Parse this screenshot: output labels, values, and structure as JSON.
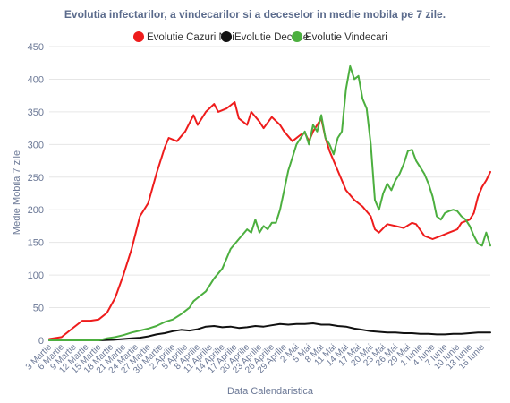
{
  "chart_data": {
    "type": "line",
    "title": "Evolutia infectarilor, a vindecarilor si a deceselor in medie mobila pe 7 zile.",
    "xlabel": "Data Calendaristica",
    "ylabel": "Medie Mobila 7 zile",
    "ylim": [
      0,
      450
    ],
    "yticks": [
      0,
      50,
      100,
      150,
      200,
      250,
      300,
      350,
      400,
      450
    ],
    "xlim": [
      0,
      107
    ],
    "xticks": [
      {
        "x": 0,
        "label": "3 Martie"
      },
      {
        "x": 3,
        "label": "6 Martie"
      },
      {
        "x": 6,
        "label": "9 Martie"
      },
      {
        "x": 9,
        "label": "12 Martie"
      },
      {
        "x": 12,
        "label": "15 Martie"
      },
      {
        "x": 15,
        "label": "18 Martie"
      },
      {
        "x": 18,
        "label": "21 Martie"
      },
      {
        "x": 21,
        "label": "24 Martie"
      },
      {
        "x": 24,
        "label": "27 Martie"
      },
      {
        "x": 27,
        "label": "30 Martie"
      },
      {
        "x": 30,
        "label": "2 Aprilie"
      },
      {
        "x": 33,
        "label": "5 Aprilie"
      },
      {
        "x": 36,
        "label": "8 Aprilie"
      },
      {
        "x": 39,
        "label": "11 Aprilie"
      },
      {
        "x": 42,
        "label": "14 Aprilie"
      },
      {
        "x": 45,
        "label": "17 Aprilie"
      },
      {
        "x": 48,
        "label": "20 Aprilie"
      },
      {
        "x": 51,
        "label": "23 Aprilie"
      },
      {
        "x": 54,
        "label": "26 Aprilie"
      },
      {
        "x": 57,
        "label": "29 Aprilie"
      },
      {
        "x": 60,
        "label": "2 Mai"
      },
      {
        "x": 63,
        "label": "5 Mai"
      },
      {
        "x": 66,
        "label": "8 Mai"
      },
      {
        "x": 69,
        "label": "11 Mai"
      },
      {
        "x": 72,
        "label": "14 Mai"
      },
      {
        "x": 75,
        "label": "17 Mai"
      },
      {
        "x": 78,
        "label": "20 Mai"
      },
      {
        "x": 81,
        "label": "23 Mai"
      },
      {
        "x": 84,
        "label": "26 Mai"
      },
      {
        "x": 87,
        "label": "29 Mai"
      },
      {
        "x": 90,
        "label": "1 Iunie"
      },
      {
        "x": 93,
        "label": "4 Iunie"
      },
      {
        "x": 96,
        "label": "7 Iunie"
      },
      {
        "x": 99,
        "label": "10 Iunie"
      },
      {
        "x": 102,
        "label": "13 Iunie"
      },
      {
        "x": 105,
        "label": "16 Iunie"
      }
    ],
    "legend_position": "top-center",
    "grid": true,
    "series": [
      {
        "name": "Evolutie Cazuri Noi",
        "color": "#ee1c1c",
        "points": [
          [
            0,
            2
          ],
          [
            3,
            5
          ],
          [
            6,
            20
          ],
          [
            8,
            30
          ],
          [
            10,
            30
          ],
          [
            12,
            32
          ],
          [
            14,
            42
          ],
          [
            16,
            65
          ],
          [
            18,
            100
          ],
          [
            20,
            140
          ],
          [
            22,
            190
          ],
          [
            24,
            210
          ],
          [
            26,
            255
          ],
          [
            28,
            295
          ],
          [
            29,
            310
          ],
          [
            31,
            305
          ],
          [
            33,
            320
          ],
          [
            35,
            345
          ],
          [
            36,
            330
          ],
          [
            38,
            350
          ],
          [
            40,
            362
          ],
          [
            41,
            350
          ],
          [
            43,
            355
          ],
          [
            45,
            365
          ],
          [
            46,
            340
          ],
          [
            48,
            330
          ],
          [
            49,
            350
          ],
          [
            51,
            335
          ],
          [
            52,
            325
          ],
          [
            54,
            342
          ],
          [
            56,
            330
          ],
          [
            57,
            320
          ],
          [
            59,
            305
          ],
          [
            61,
            315
          ],
          [
            62,
            318
          ],
          [
            63,
            305
          ],
          [
            64,
            320
          ],
          [
            66,
            340
          ],
          [
            67,
            310
          ],
          [
            68,
            290
          ],
          [
            70,
            260
          ],
          [
            72,
            230
          ],
          [
            74,
            215
          ],
          [
            76,
            205
          ],
          [
            78,
            190
          ],
          [
            79,
            170
          ],
          [
            80,
            165
          ],
          [
            82,
            178
          ],
          [
            84,
            175
          ],
          [
            86,
            172
          ],
          [
            88,
            180
          ],
          [
            89,
            178
          ],
          [
            91,
            160
          ],
          [
            93,
            155
          ],
          [
            95,
            160
          ],
          [
            97,
            165
          ],
          [
            99,
            170
          ],
          [
            100,
            180
          ],
          [
            102,
            185
          ],
          [
            103,
            195
          ],
          [
            104,
            220
          ],
          [
            105,
            235
          ],
          [
            106,
            245
          ],
          [
            107,
            258
          ]
        ]
      },
      {
        "name": "Evolutie Decese",
        "color": "#111111",
        "points": [
          [
            0,
            0
          ],
          [
            6,
            0
          ],
          [
            12,
            0
          ],
          [
            16,
            1
          ],
          [
            18,
            2
          ],
          [
            20,
            3
          ],
          [
            22,
            4
          ],
          [
            24,
            6
          ],
          [
            26,
            9
          ],
          [
            28,
            11
          ],
          [
            30,
            14
          ],
          [
            32,
            16
          ],
          [
            34,
            15
          ],
          [
            36,
            17
          ],
          [
            38,
            21
          ],
          [
            40,
            22
          ],
          [
            42,
            20
          ],
          [
            44,
            21
          ],
          [
            46,
            19
          ],
          [
            48,
            20
          ],
          [
            50,
            22
          ],
          [
            52,
            21
          ],
          [
            54,
            23
          ],
          [
            56,
            25
          ],
          [
            58,
            24
          ],
          [
            60,
            25
          ],
          [
            62,
            25
          ],
          [
            64,
            26
          ],
          [
            66,
            24
          ],
          [
            68,
            24
          ],
          [
            70,
            22
          ],
          [
            72,
            21
          ],
          [
            74,
            18
          ],
          [
            76,
            16
          ],
          [
            78,
            14
          ],
          [
            80,
            13
          ],
          [
            82,
            12
          ],
          [
            84,
            12
          ],
          [
            86,
            11
          ],
          [
            88,
            11
          ],
          [
            90,
            10
          ],
          [
            92,
            10
          ],
          [
            94,
            9
          ],
          [
            96,
            9
          ],
          [
            98,
            10
          ],
          [
            100,
            10
          ],
          [
            102,
            11
          ],
          [
            104,
            12
          ],
          [
            106,
            12
          ],
          [
            107,
            12
          ]
        ]
      },
      {
        "name": "Evolutie Vindecari",
        "color": "#4caf3f",
        "points": [
          [
            0,
            0
          ],
          [
            6,
            0
          ],
          [
            12,
            0
          ],
          [
            14,
            3
          ],
          [
            16,
            5
          ],
          [
            18,
            8
          ],
          [
            20,
            12
          ],
          [
            22,
            15
          ],
          [
            24,
            18
          ],
          [
            26,
            22
          ],
          [
            28,
            28
          ],
          [
            30,
            32
          ],
          [
            32,
            40
          ],
          [
            34,
            50
          ],
          [
            35,
            60
          ],
          [
            36,
            65
          ],
          [
            38,
            75
          ],
          [
            40,
            95
          ],
          [
            42,
            110
          ],
          [
            44,
            140
          ],
          [
            46,
            155
          ],
          [
            48,
            170
          ],
          [
            49,
            165
          ],
          [
            50,
            185
          ],
          [
            51,
            165
          ],
          [
            52,
            175
          ],
          [
            53,
            170
          ],
          [
            54,
            180
          ],
          [
            55,
            180
          ],
          [
            56,
            200
          ],
          [
            57,
            230
          ],
          [
            58,
            260
          ],
          [
            59,
            280
          ],
          [
            60,
            300
          ],
          [
            61,
            310
          ],
          [
            62,
            320
          ],
          [
            63,
            300
          ],
          [
            64,
            330
          ],
          [
            65,
            320
          ],
          [
            66,
            345
          ],
          [
            67,
            310
          ],
          [
            68,
            300
          ],
          [
            69,
            285
          ],
          [
            70,
            310
          ],
          [
            71,
            320
          ],
          [
            72,
            385
          ],
          [
            73,
            420
          ],
          [
            74,
            400
          ],
          [
            75,
            405
          ],
          [
            76,
            370
          ],
          [
            77,
            355
          ],
          [
            78,
            300
          ],
          [
            79,
            215
          ],
          [
            80,
            200
          ],
          [
            81,
            225
          ],
          [
            82,
            240
          ],
          [
            83,
            230
          ],
          [
            84,
            245
          ],
          [
            85,
            255
          ],
          [
            86,
            270
          ],
          [
            87,
            290
          ],
          [
            88,
            292
          ],
          [
            89,
            275
          ],
          [
            90,
            265
          ],
          [
            91,
            255
          ],
          [
            92,
            240
          ],
          [
            93,
            220
          ],
          [
            94,
            190
          ],
          [
            95,
            185
          ],
          [
            96,
            195
          ],
          [
            97,
            198
          ],
          [
            98,
            200
          ],
          [
            99,
            198
          ],
          [
            100,
            190
          ],
          [
            101,
            185
          ],
          [
            102,
            175
          ],
          [
            103,
            160
          ],
          [
            104,
            148
          ],
          [
            105,
            145
          ],
          [
            106,
            165
          ],
          [
            107,
            145
          ]
        ]
      }
    ]
  }
}
